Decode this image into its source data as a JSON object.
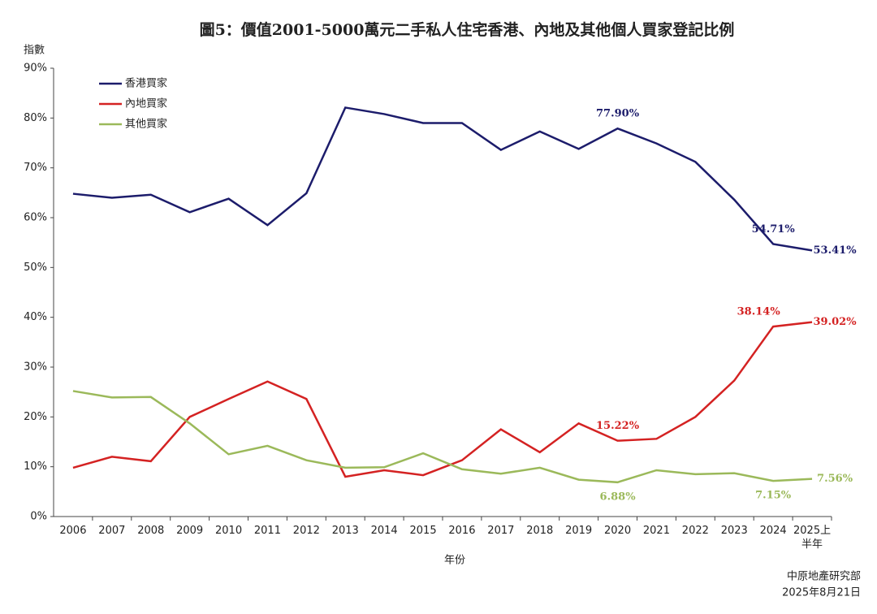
{
  "chart_data": {
    "type": "line",
    "title": "圖5：價值2001-5000萬元二手私人住宅香港、內地及其他個人買家登記比例",
    "y_label": "指數",
    "x_label": "年份",
    "source": "中原地產研究部",
    "date": "2025年8月21日",
    "categories": [
      "2006",
      "2007",
      "2008",
      "2009",
      "2010",
      "2011",
      "2012",
      "2013",
      "2014",
      "2015",
      "2016",
      "2017",
      "2018",
      "2019",
      "2020",
      "2021",
      "2022",
      "2023",
      "2024",
      "2025上\n半年"
    ],
    "ylim": [
      0,
      90
    ],
    "yticks": [
      {
        "value": 0,
        "label": "0%"
      },
      {
        "value": 10,
        "label": "10%"
      },
      {
        "value": 20,
        "label": "20%"
      },
      {
        "value": 30,
        "label": "30%"
      },
      {
        "value": 40,
        "label": "40%"
      },
      {
        "value": 50,
        "label": "50%"
      },
      {
        "value": 60,
        "label": "60%"
      },
      {
        "value": 70,
        "label": "70%"
      },
      {
        "value": 80,
        "label": "80%"
      },
      {
        "value": 90,
        "label": "90%"
      }
    ],
    "legend": "top-left",
    "series": [
      {
        "name": "香港買家",
        "color": "#1c1c6b",
        "values": [
          64.8,
          64.0,
          64.6,
          61.1,
          63.8,
          58.5,
          64.9,
          82.1,
          80.8,
          79.0,
          79.0,
          73.6,
          77.3,
          73.8,
          77.9,
          74.9,
          71.2,
          63.6,
          54.71,
          53.41
        ],
        "value_labels": [
          null,
          null,
          null,
          null,
          null,
          null,
          null,
          null,
          null,
          null,
          null,
          null,
          null,
          null,
          "77.90%",
          null,
          null,
          null,
          "54.71%",
          "53.41%"
        ]
      },
      {
        "name": "內地買家",
        "color": "#d42222",
        "values": [
          9.8,
          12.0,
          11.1,
          20.0,
          23.6,
          27.1,
          23.6,
          8.0,
          9.3,
          8.3,
          11.3,
          17.5,
          12.9,
          18.7,
          15.22,
          15.6,
          20.0,
          27.3,
          38.14,
          39.02
        ],
        "value_labels": [
          null,
          null,
          null,
          null,
          null,
          null,
          null,
          null,
          null,
          null,
          null,
          null,
          null,
          null,
          "15.22%",
          null,
          null,
          null,
          "38.14%",
          "39.02%"
        ]
      },
      {
        "name": "其他買家",
        "color": "#9bb95a",
        "values": [
          25.2,
          23.9,
          24.0,
          18.7,
          12.5,
          14.2,
          11.3,
          9.8,
          9.9,
          12.7,
          9.5,
          8.6,
          9.8,
          7.4,
          6.88,
          9.3,
          8.5,
          8.7,
          7.15,
          7.56
        ],
        "value_labels": [
          null,
          null,
          null,
          null,
          null,
          null,
          null,
          null,
          null,
          null,
          null,
          null,
          null,
          null,
          "6.88%",
          null,
          null,
          null,
          "7.15%",
          "7.56%"
        ]
      }
    ]
  }
}
